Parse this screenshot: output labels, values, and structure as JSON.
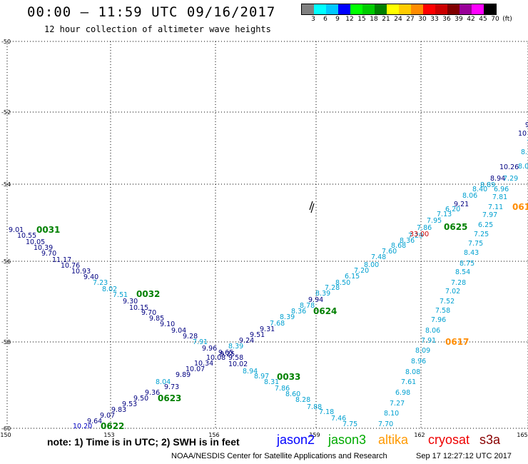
{
  "header": {
    "title": "00:00 – 11:59 UTC 09/16/2017",
    "subtitle": "12 hour collection of altimeter wave heights"
  },
  "legend": {
    "colors": [
      "#808080",
      "#00ffff",
      "#00c8ff",
      "#0000ff",
      "#00ff00",
      "#00cc00",
      "#008000",
      "#ffff00",
      "#ffcc00",
      "#ff8c00",
      "#ff0000",
      "#cc0000",
      "#800000",
      "#990099",
      "#ff00ff",
      "#000000"
    ],
    "labels": [
      "3",
      "6",
      "9",
      "12",
      "15",
      "18",
      "21",
      "24",
      "27",
      "30",
      "33",
      "36",
      "39",
      "42",
      "45",
      "70",
      "(ft)"
    ]
  },
  "axes": {
    "lat_labels": [
      "-50",
      "-52",
      "-54",
      "-56",
      "-58",
      "-60"
    ],
    "lon_labels": [
      "150",
      "153",
      "156",
      "159",
      "162",
      "165"
    ]
  },
  "tracks": [
    {
      "id": "0031",
      "color": "#008000"
    },
    {
      "id": "0032",
      "color": "#008000"
    },
    {
      "id": "0033",
      "color": "#008000"
    },
    {
      "id": "0625",
      "color": "#008000"
    },
    {
      "id": "0624",
      "color": "#008000"
    },
    {
      "id": "0623",
      "color": "#008000"
    },
    {
      "id": "0622",
      "color": "#008000"
    },
    {
      "id": "0617",
      "color": "#ff8c00"
    },
    {
      "id": "061",
      "color": "#ff8c00"
    }
  ],
  "values": [
    {
      "v": "9.01",
      "c": "#000080"
    },
    {
      "v": "10.55",
      "c": "#000080"
    },
    {
      "v": "10.05",
      "c": "#000080"
    },
    {
      "v": "10.39",
      "c": "#000080"
    },
    {
      "v": "9.70",
      "c": "#000080"
    },
    {
      "v": "11.17",
      "c": "#000080"
    },
    {
      "v": "10.76",
      "c": "#000080"
    },
    {
      "v": "10.93",
      "c": "#000080"
    },
    {
      "v": "9.40",
      "c": "#000080"
    },
    {
      "v": "7.23",
      "c": "#00a0d0"
    },
    {
      "v": "8.02",
      "c": "#00a0d0"
    },
    {
      "v": "7.51",
      "c": "#00a0d0"
    },
    {
      "v": "9.30",
      "c": "#000080"
    },
    {
      "v": "10.15",
      "c": "#000080"
    },
    {
      "v": "9.70",
      "c": "#000080"
    },
    {
      "v": "9.85",
      "c": "#000080"
    },
    {
      "v": "9.10",
      "c": "#000080"
    },
    {
      "v": "9.04",
      "c": "#000080"
    },
    {
      "v": "9.28",
      "c": "#000080"
    },
    {
      "v": "7.91",
      "c": "#00a0d0"
    },
    {
      "v": "9.96",
      "c": "#000080"
    },
    {
      "v": "9.25",
      "c": "#000080"
    },
    {
      "v": "10.08",
      "c": "#000080"
    },
    {
      "v": "9.58",
      "c": "#000080"
    },
    {
      "v": "10.02",
      "c": "#000080"
    },
    {
      "v": "8.94",
      "c": "#00a0d0"
    },
    {
      "v": "8.97",
      "c": "#00a0d0"
    },
    {
      "v": "8.31",
      "c": "#00a0d0"
    },
    {
      "v": "7.86",
      "c": "#00a0d0"
    },
    {
      "v": "8.60",
      "c": "#00a0d0"
    },
    {
      "v": "8.28",
      "c": "#00a0d0"
    },
    {
      "v": "7.88",
      "c": "#00a0d0"
    },
    {
      "v": "7.18",
      "c": "#00a0d0"
    },
    {
      "v": "7.46",
      "c": "#00a0d0"
    },
    {
      "v": "7.75",
      "c": "#00a0d0"
    },
    {
      "v": "10.20",
      "c": "#0000c0"
    },
    {
      "v": "9.64",
      "c": "#000080"
    },
    {
      "v": "9.07",
      "c": "#000080"
    },
    {
      "v": "9.83",
      "c": "#000080"
    },
    {
      "v": "9.53",
      "c": "#000080"
    },
    {
      "v": "9.50",
      "c": "#000080"
    },
    {
      "v": "9.36",
      "c": "#000080"
    },
    {
      "v": "8.04",
      "c": "#00a0d0"
    },
    {
      "v": "9.73",
      "c": "#000080"
    },
    {
      "v": "9.89",
      "c": "#000080"
    },
    {
      "v": "10.07",
      "c": "#000080"
    },
    {
      "v": "10.34",
      "c": "#000080"
    },
    {
      "v": "9.65",
      "c": "#000080"
    },
    {
      "v": "8.39",
      "c": "#00a0d0"
    },
    {
      "v": "9.24",
      "c": "#000080"
    },
    {
      "v": "9.51",
      "c": "#000080"
    },
    {
      "v": "9.31",
      "c": "#000080"
    },
    {
      "v": "7.68",
      "c": "#00a0d0"
    },
    {
      "v": "8.39",
      "c": "#00a0d0"
    },
    {
      "v": "8.36",
      "c": "#00a0d0"
    },
    {
      "v": "8.78",
      "c": "#00a0d0"
    },
    {
      "v": "9.94",
      "c": "#000080"
    },
    {
      "v": "8.39",
      "c": "#00a0d0"
    },
    {
      "v": "7.28",
      "c": "#00a0d0"
    },
    {
      "v": "8.50",
      "c": "#00a0d0"
    },
    {
      "v": "6.15",
      "c": "#00a0d0"
    },
    {
      "v": "7.20",
      "c": "#00a0d0"
    },
    {
      "v": "8.00",
      "c": "#00a0d0"
    },
    {
      "v": "7.48",
      "c": "#00a0d0"
    },
    {
      "v": "7.60",
      "c": "#00a0d0"
    },
    {
      "v": "8.68",
      "c": "#00a0d0"
    },
    {
      "v": "8.36",
      "c": "#00a0d0"
    },
    {
      "v": "7.29",
      "c": "#00a0d0"
    },
    {
      "v": "33.00",
      "c": "#cc0000"
    },
    {
      "v": "7.86",
      "c": "#00a0d0"
    },
    {
      "v": "7.95",
      "c": "#00a0d0"
    },
    {
      "v": "7.13",
      "c": "#00a0d0"
    },
    {
      "v": "6.20",
      "c": "#00a0d0"
    },
    {
      "v": "9.21",
      "c": "#000080"
    },
    {
      "v": "8.06",
      "c": "#00a0d0"
    },
    {
      "v": "8.40",
      "c": "#00a0d0"
    },
    {
      "v": "8.89",
      "c": "#00a0d0"
    },
    {
      "v": "8.94",
      "c": "#000080"
    },
    {
      "v": "7.29",
      "c": "#00a0d0"
    },
    {
      "v": "10.26",
      "c": "#000080"
    },
    {
      "v": "8.01",
      "c": "#00a0d0"
    },
    {
      "v": "8.60",
      "c": "#00a0d0"
    },
    {
      "v": "7.9",
      "c": "#00a0d0"
    },
    {
      "v": "10",
      "c": "#000080"
    },
    {
      "v": "9",
      "c": "#000080"
    },
    {
      "v": "6.96",
      "c": "#00a0d0"
    },
    {
      "v": "7.81",
      "c": "#00a0d0"
    },
    {
      "v": "7.11",
      "c": "#00a0d0"
    },
    {
      "v": "7.97",
      "c": "#00a0d0"
    },
    {
      "v": "6.25",
      "c": "#00a0d0"
    },
    {
      "v": "7.25",
      "c": "#00a0d0"
    },
    {
      "v": "7.75",
      "c": "#00a0d0"
    },
    {
      "v": "8.43",
      "c": "#00a0d0"
    },
    {
      "v": "8.75",
      "c": "#00a0d0"
    },
    {
      "v": "8.54",
      "c": "#00a0d0"
    },
    {
      "v": "7.28",
      "c": "#00a0d0"
    },
    {
      "v": "7.02",
      "c": "#00a0d0"
    },
    {
      "v": "7.52",
      "c": "#00a0d0"
    },
    {
      "v": "7.58",
      "c": "#00a0d0"
    },
    {
      "v": "7.96",
      "c": "#00a0d0"
    },
    {
      "v": "8.06",
      "c": "#00a0d0"
    },
    {
      "v": "7.91",
      "c": "#00a0d0"
    },
    {
      "v": "8.09",
      "c": "#00a0d0"
    },
    {
      "v": "8.96",
      "c": "#00a0d0"
    },
    {
      "v": "8.08",
      "c": "#00a0d0"
    },
    {
      "v": "7.61",
      "c": "#00a0d0"
    },
    {
      "v": "6.98",
      "c": "#00a0d0"
    },
    {
      "v": "7.27",
      "c": "#00a0d0"
    },
    {
      "v": "8.10",
      "c": "#00a0d0"
    },
    {
      "v": "7.70",
      "c": "#00a0d0"
    }
  ],
  "footer": {
    "note": "note:  1) Time is in UTC;  2) SWH is in feet",
    "satellites": [
      {
        "name": "jason2",
        "color": "#0000ff"
      },
      {
        "name": "jason3",
        "color": "#00aa00"
      },
      {
        "name": "altika",
        "color": "#ff9900"
      },
      {
        "name": "cryosat",
        "color": "#ee0000"
      },
      {
        "name": "s3a",
        "color": "#880000"
      }
    ],
    "credit": "NOAA/NESDIS Center for Satellite Applications and Research",
    "timestamp": "Sep 17 12:27:12 UTC 2017"
  }
}
